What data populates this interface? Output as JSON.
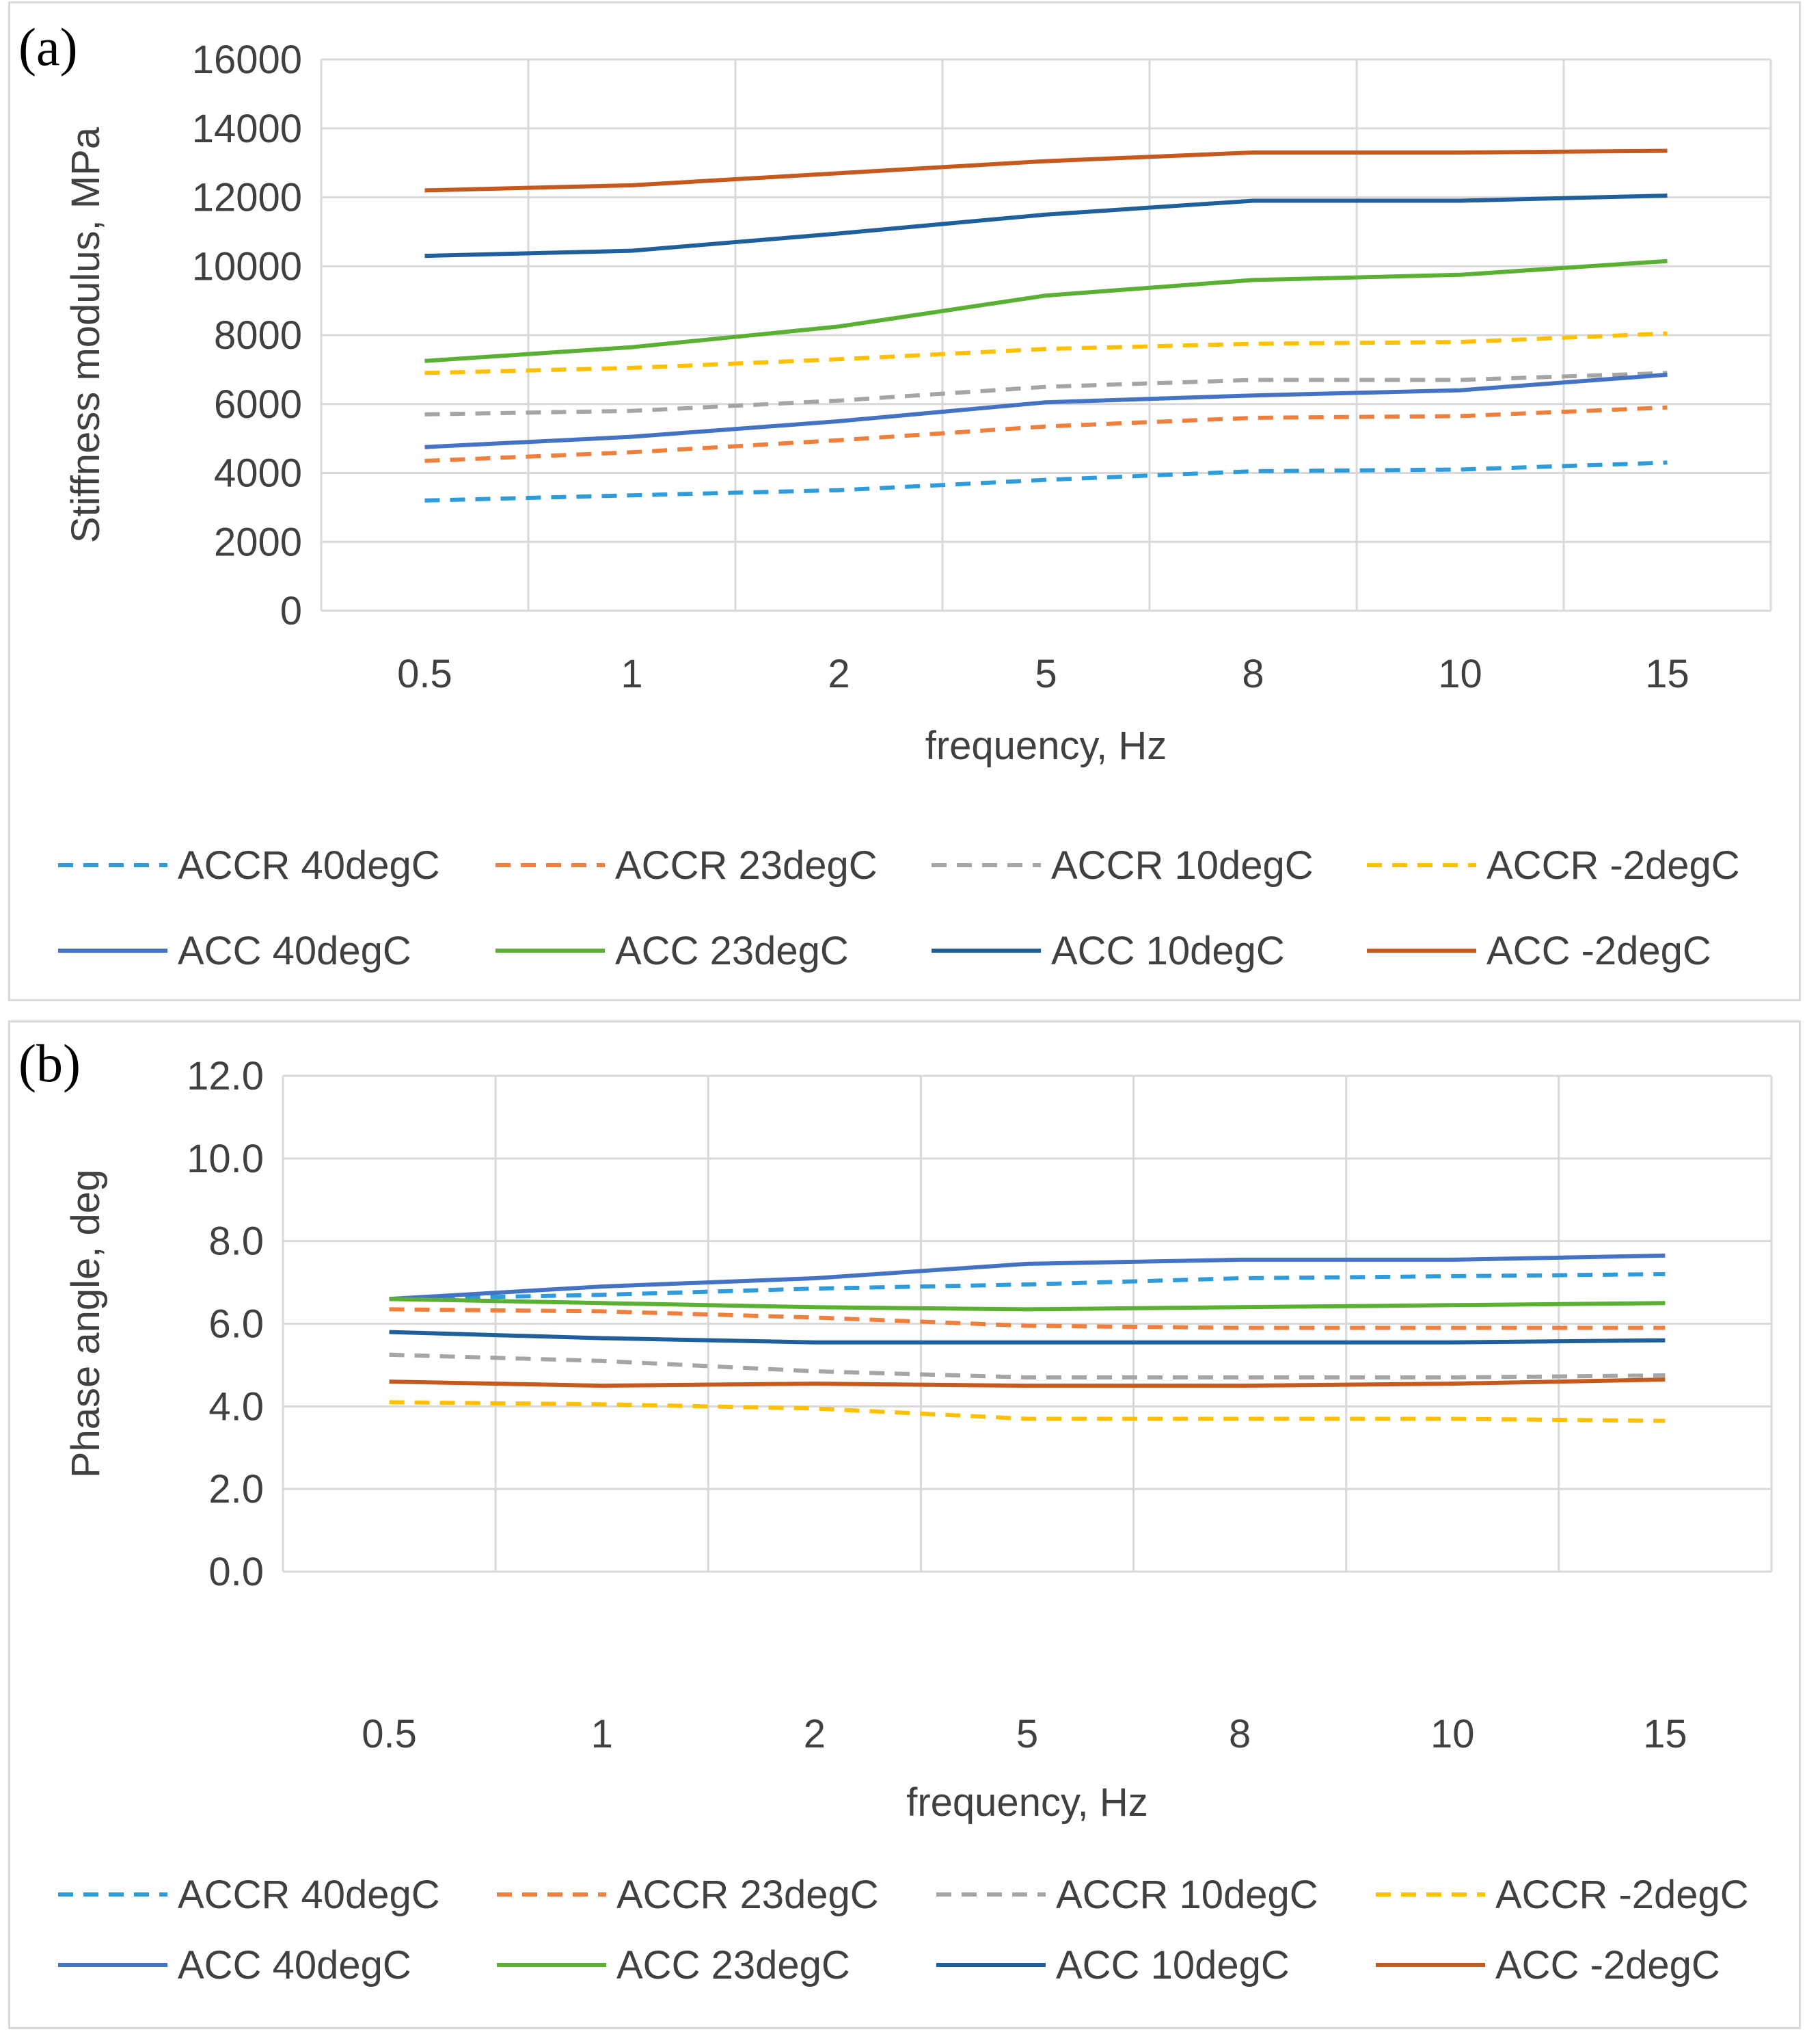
{
  "chart_data": [
    {
      "panel_label": "(a)",
      "type": "line",
      "categories": [
        "0.5",
        "1",
        "2",
        "5",
        "8",
        "10",
        "15"
      ],
      "xlabel": "frequency, Hz",
      "ylabel": "Stiffness modulus, MPa",
      "ylim": [
        0,
        16000
      ],
      "yticks": [
        "0",
        "2000",
        "4000",
        "6000",
        "8000",
        "10000",
        "12000",
        "14000",
        "16000"
      ],
      "grid": true,
      "legend_position": "bottom",
      "series": [
        {
          "name": "ACCR 40degC",
          "style": "dashed",
          "color": "#2e9cdb",
          "values": [
            3200,
            3350,
            3500,
            3800,
            4050,
            4100,
            4300
          ]
        },
        {
          "name": "ACCR 23degC",
          "style": "dashed",
          "color": "#f07f3c",
          "values": [
            4350,
            4600,
            4950,
            5350,
            5600,
            5650,
            5900
          ]
        },
        {
          "name": "ACCR 10degC",
          "style": "dashed",
          "color": "#a5a5a5",
          "values": [
            5700,
            5800,
            6100,
            6500,
            6700,
            6700,
            6900
          ]
        },
        {
          "name": "ACCR -2degC",
          "style": "dashed",
          "color": "#ffc000",
          "values": [
            6900,
            7050,
            7300,
            7600,
            7750,
            7800,
            8050
          ]
        },
        {
          "name": "ACC 40degC",
          "style": "solid",
          "color": "#4472c4",
          "values": [
            4750,
            5050,
            5500,
            6050,
            6250,
            6400,
            6850
          ]
        },
        {
          "name": "ACC 23degC",
          "style": "solid",
          "color": "#5ab033",
          "values": [
            7250,
            7650,
            8250,
            9150,
            9600,
            9750,
            10150
          ]
        },
        {
          "name": "ACC 10degC",
          "style": "solid",
          "color": "#1f5f9b",
          "values": [
            10300,
            10450,
            10950,
            11500,
            11900,
            11900,
            12050
          ]
        },
        {
          "name": "ACC -2degC",
          "style": "solid",
          "color": "#c65a1e",
          "values": [
            12200,
            12350,
            12700,
            13050,
            13300,
            13300,
            13350
          ]
        }
      ]
    },
    {
      "panel_label": "(b)",
      "type": "line",
      "categories": [
        "0.5",
        "1",
        "2",
        "5",
        "8",
        "10",
        "15"
      ],
      "xlabel": "frequency, Hz",
      "ylabel": "Phase angle, deg",
      "ylim": [
        0,
        12
      ],
      "yticks": [
        "0.0",
        "2.0",
        "4.0",
        "6.0",
        "8.0",
        "10.0",
        "12.0"
      ],
      "grid": true,
      "legend_position": "bottom",
      "series": [
        {
          "name": "ACCR 40degC",
          "style": "dashed",
          "color": "#2e9cdb",
          "values": [
            6.6,
            6.7,
            6.85,
            6.95,
            7.1,
            7.15,
            7.2
          ]
        },
        {
          "name": "ACCR 23degC",
          "style": "dashed",
          "color": "#f07f3c",
          "values": [
            6.35,
            6.3,
            6.15,
            5.95,
            5.9,
            5.9,
            5.9
          ]
        },
        {
          "name": "ACCR 10degC",
          "style": "dashed",
          "color": "#a5a5a5",
          "values": [
            5.25,
            5.1,
            4.85,
            4.7,
            4.7,
            4.7,
            4.75
          ]
        },
        {
          "name": "ACCR -2degC",
          "style": "dashed",
          "color": "#ffc000",
          "values": [
            4.1,
            4.05,
            3.95,
            3.7,
            3.7,
            3.7,
            3.65
          ]
        },
        {
          "name": "ACC 40degC",
          "style": "solid",
          "color": "#4472c4",
          "values": [
            6.6,
            6.9,
            7.1,
            7.45,
            7.55,
            7.55,
            7.65
          ]
        },
        {
          "name": "ACC 23degC",
          "style": "solid",
          "color": "#5ab033",
          "values": [
            6.6,
            6.5,
            6.4,
            6.35,
            6.4,
            6.45,
            6.5
          ]
        },
        {
          "name": "ACC 10degC",
          "style": "solid",
          "color": "#1f5f9b",
          "values": [
            5.8,
            5.65,
            5.55,
            5.55,
            5.55,
            5.55,
            5.6
          ]
        },
        {
          "name": "ACC -2degC",
          "style": "solid",
          "color": "#c65a1e",
          "values": [
            4.6,
            4.5,
            4.55,
            4.5,
            4.5,
            4.55,
            4.65
          ]
        }
      ]
    }
  ]
}
